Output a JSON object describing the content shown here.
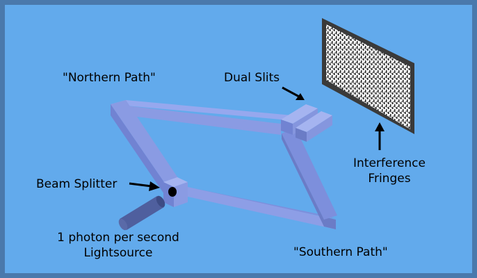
{
  "labels": {
    "northern_path": "\"Northern Path\"",
    "southern_path": "\"Southern Path\"",
    "dual_slits": "Dual Slits",
    "interference_line1": "Interference",
    "interference_line2": "Fringes",
    "beam_splitter": "Beam Splitter",
    "lightsource_line1": "1 photon per second",
    "lightsource_line2": "Lightsource"
  },
  "colors": {
    "border": "#4a79ac",
    "background": "#62aaec",
    "path_top": "#96a8ee",
    "path_side": "#7183d2",
    "path_dark": "#5a6bbd",
    "screen_frame": "#3a3a3a",
    "lightsource": "#4f5f9e"
  }
}
